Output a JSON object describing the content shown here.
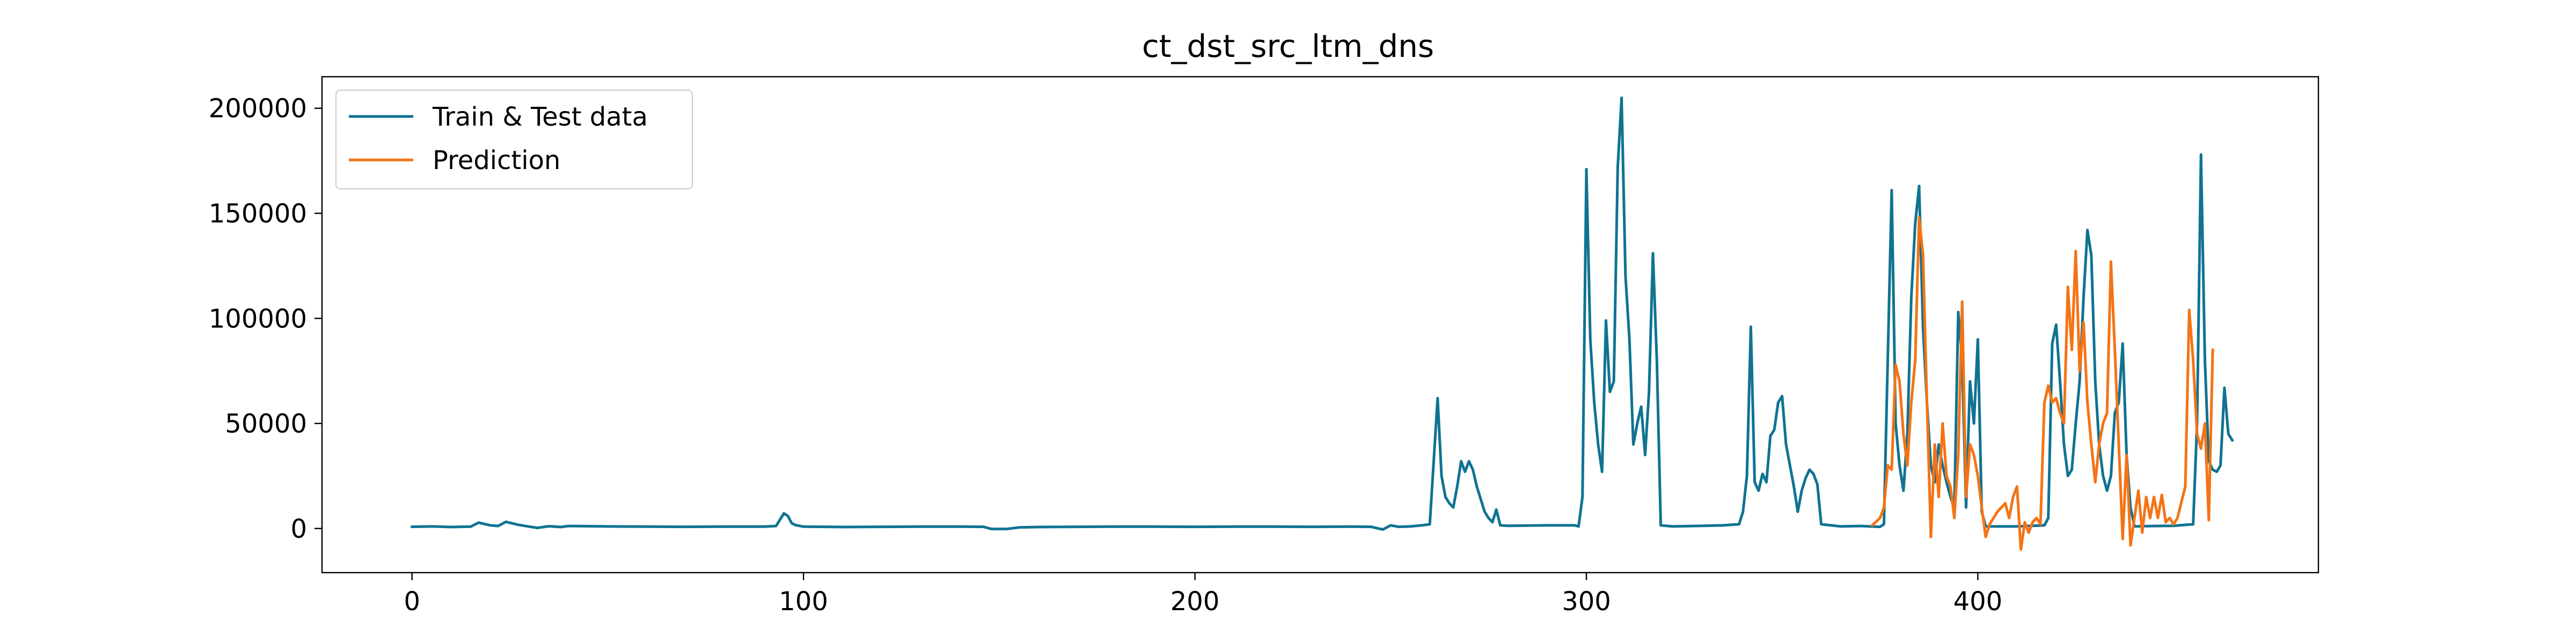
{
  "chart_data": {
    "type": "line",
    "title": "ct_dst_src_ltm_dns",
    "xlabel": "",
    "ylabel": "",
    "xlim": [
      -23,
      487
    ],
    "ylim": [
      -21000,
      215000
    ],
    "xticks": [
      0,
      100,
      200,
      300,
      400
    ],
    "yticks": [
      0,
      50000,
      100000,
      150000,
      200000
    ],
    "legend_position": "upper-left",
    "grid": false,
    "series": [
      {
        "name": "Train & Test data",
        "color": "#0f7391",
        "points": [
          [
            0,
            800
          ],
          [
            5,
            1000
          ],
          [
            10,
            700
          ],
          [
            15,
            900
          ],
          [
            17,
            2800
          ],
          [
            20,
            1500
          ],
          [
            22,
            1200
          ],
          [
            24,
            3200
          ],
          [
            27,
            1800
          ],
          [
            30,
            900
          ],
          [
            32,
            300
          ],
          [
            35,
            1100
          ],
          [
            38,
            700
          ],
          [
            40,
            1200
          ],
          [
            50,
            1000
          ],
          [
            60,
            900
          ],
          [
            70,
            800
          ],
          [
            80,
            900
          ],
          [
            90,
            900
          ],
          [
            93,
            1200
          ],
          [
            95,
            7200
          ],
          [
            96,
            6000
          ],
          [
            97,
            2500
          ],
          [
            98,
            1600
          ],
          [
            100,
            900
          ],
          [
            110,
            700
          ],
          [
            120,
            800
          ],
          [
            130,
            900
          ],
          [
            140,
            900
          ],
          [
            146,
            800
          ],
          [
            148,
            -200
          ],
          [
            152,
            -200
          ],
          [
            155,
            500
          ],
          [
            160,
            700
          ],
          [
            170,
            800
          ],
          [
            180,
            900
          ],
          [
            190,
            900
          ],
          [
            200,
            800
          ],
          [
            210,
            900
          ],
          [
            220,
            900
          ],
          [
            230,
            800
          ],
          [
            240,
            900
          ],
          [
            245,
            800
          ],
          [
            248,
            -500
          ],
          [
            250,
            1500
          ],
          [
            252,
            800
          ],
          [
            255,
            1000
          ],
          [
            258,
            1500
          ],
          [
            260,
            2000
          ],
          [
            262,
            62000
          ],
          [
            263,
            25000
          ],
          [
            264,
            15000
          ],
          [
            265,
            12000
          ],
          [
            266,
            10000
          ],
          [
            267,
            20000
          ],
          [
            268,
            32000
          ],
          [
            269,
            27000
          ],
          [
            270,
            32000
          ],
          [
            271,
            28000
          ],
          [
            272,
            20000
          ],
          [
            273,
            14000
          ],
          [
            274,
            8000
          ],
          [
            275,
            5000
          ],
          [
            276,
            3000
          ],
          [
            277,
            9000
          ],
          [
            278,
            1500
          ],
          [
            280,
            1300
          ],
          [
            290,
            1500
          ],
          [
            297,
            1500
          ],
          [
            298,
            1000
          ],
          [
            299,
            15000
          ],
          [
            300,
            171000
          ],
          [
            301,
            90000
          ],
          [
            302,
            60000
          ],
          [
            303,
            40000
          ],
          [
            304,
            27000
          ],
          [
            305,
            99000
          ],
          [
            306,
            65000
          ],
          [
            307,
            70000
          ],
          [
            308,
            172000
          ],
          [
            309,
            205000
          ],
          [
            310,
            120000
          ],
          [
            311,
            90000
          ],
          [
            312,
            40000
          ],
          [
            313,
            50000
          ],
          [
            314,
            58000
          ],
          [
            315,
            35000
          ],
          [
            316,
            65000
          ],
          [
            317,
            131000
          ],
          [
            318,
            80000
          ],
          [
            319,
            1500
          ],
          [
            322,
            1000
          ],
          [
            330,
            1300
          ],
          [
            335,
            1500
          ],
          [
            339,
            2000
          ],
          [
            340,
            8000
          ],
          [
            341,
            25000
          ],
          [
            342,
            96000
          ],
          [
            343,
            22000
          ],
          [
            344,
            18000
          ],
          [
            345,
            26000
          ],
          [
            346,
            22000
          ],
          [
            347,
            44000
          ],
          [
            348,
            47000
          ],
          [
            349,
            60000
          ],
          [
            350,
            63000
          ],
          [
            351,
            40000
          ],
          [
            352,
            30000
          ],
          [
            353,
            20000
          ],
          [
            354,
            8000
          ],
          [
            355,
            18000
          ],
          [
            356,
            24000
          ],
          [
            357,
            28000
          ],
          [
            358,
            26000
          ],
          [
            359,
            21000
          ],
          [
            360,
            2000
          ],
          [
            365,
            1000
          ],
          [
            370,
            1200
          ],
          [
            375,
            800
          ],
          [
            376,
            2000
          ],
          [
            378,
            161000
          ],
          [
            379,
            50000
          ],
          [
            380,
            30000
          ],
          [
            381,
            18000
          ],
          [
            382,
            45000
          ],
          [
            383,
            110000
          ],
          [
            384,
            145000
          ],
          [
            385,
            163000
          ],
          [
            386,
            95000
          ],
          [
            387,
            60000
          ],
          [
            388,
            30000
          ],
          [
            389,
            22000
          ],
          [
            390,
            40000
          ],
          [
            391,
            30000
          ],
          [
            392,
            22000
          ],
          [
            393,
            15000
          ],
          [
            394,
            10000
          ],
          [
            395,
            103000
          ],
          [
            396,
            80000
          ],
          [
            397,
            10000
          ],
          [
            398,
            70000
          ],
          [
            399,
            50000
          ],
          [
            400,
            90000
          ],
          [
            401,
            8000
          ],
          [
            402,
            1000
          ],
          [
            410,
            1000
          ],
          [
            417,
            1500
          ],
          [
            418,
            5000
          ],
          [
            419,
            88000
          ],
          [
            420,
            97000
          ],
          [
            421,
            70000
          ],
          [
            422,
            40000
          ],
          [
            423,
            25000
          ],
          [
            424,
            28000
          ],
          [
            425,
            50000
          ],
          [
            426,
            70000
          ],
          [
            427,
            110000
          ],
          [
            428,
            142000
          ],
          [
            429,
            130000
          ],
          [
            430,
            70000
          ],
          [
            431,
            40000
          ],
          [
            432,
            25000
          ],
          [
            433,
            18000
          ],
          [
            434,
            25000
          ],
          [
            435,
            55000
          ],
          [
            436,
            60000
          ],
          [
            437,
            88000
          ],
          [
            438,
            35000
          ],
          [
            439,
            10000
          ],
          [
            440,
            1000
          ],
          [
            445,
            1200
          ],
          [
            450,
            1300
          ],
          [
            455,
            2000
          ],
          [
            456,
            50000
          ],
          [
            457,
            178000
          ],
          [
            458,
            80000
          ],
          [
            459,
            32000
          ],
          [
            460,
            28000
          ],
          [
            461,
            27000
          ],
          [
            462,
            30000
          ],
          [
            463,
            67000
          ],
          [
            464,
            45000
          ],
          [
            465,
            42000
          ]
        ]
      },
      {
        "name": "Prediction",
        "color": "#f57315",
        "points": [
          [
            373,
            1500
          ],
          [
            375,
            5000
          ],
          [
            376,
            10000
          ],
          [
            377,
            30000
          ],
          [
            378,
            28000
          ],
          [
            379,
            78000
          ],
          [
            380,
            70000
          ],
          [
            381,
            45000
          ],
          [
            382,
            30000
          ],
          [
            383,
            60000
          ],
          [
            384,
            80000
          ],
          [
            385,
            148000
          ],
          [
            386,
            130000
          ],
          [
            387,
            60000
          ],
          [
            388,
            -4000
          ],
          [
            389,
            40000
          ],
          [
            390,
            15000
          ],
          [
            391,
            50000
          ],
          [
            392,
            25000
          ],
          [
            393,
            20000
          ],
          [
            394,
            5000
          ],
          [
            395,
            35000
          ],
          [
            396,
            108000
          ],
          [
            397,
            15000
          ],
          [
            398,
            40000
          ],
          [
            399,
            35000
          ],
          [
            400,
            25000
          ],
          [
            401,
            10000
          ],
          [
            402,
            -4000
          ],
          [
            403,
            2000
          ],
          [
            404,
            5000
          ],
          [
            405,
            8000
          ],
          [
            406,
            10000
          ],
          [
            407,
            12000
          ],
          [
            408,
            5000
          ],
          [
            409,
            15000
          ],
          [
            410,
            20000
          ],
          [
            411,
            -10000
          ],
          [
            412,
            3000
          ],
          [
            413,
            -2000
          ],
          [
            414,
            3000
          ],
          [
            415,
            5000
          ],
          [
            416,
            2000
          ],
          [
            417,
            60000
          ],
          [
            418,
            68000
          ],
          [
            419,
            60000
          ],
          [
            420,
            62000
          ],
          [
            421,
            55000
          ],
          [
            422,
            50000
          ],
          [
            423,
            115000
          ],
          [
            424,
            85000
          ],
          [
            425,
            132000
          ],
          [
            426,
            75000
          ],
          [
            427,
            98000
          ],
          [
            428,
            60000
          ],
          [
            429,
            40000
          ],
          [
            430,
            22000
          ],
          [
            431,
            40000
          ],
          [
            432,
            50000
          ],
          [
            433,
            55000
          ],
          [
            434,
            127000
          ],
          [
            435,
            85000
          ],
          [
            436,
            40000
          ],
          [
            437,
            -5000
          ],
          [
            438,
            35000
          ],
          [
            439,
            -8000
          ],
          [
            440,
            5000
          ],
          [
            441,
            18000
          ],
          [
            442,
            -2000
          ],
          [
            443,
            15000
          ],
          [
            444,
            5000
          ],
          [
            445,
            15000
          ],
          [
            446,
            5000
          ],
          [
            447,
            16000
          ],
          [
            448,
            3000
          ],
          [
            449,
            5000
          ],
          [
            450,
            2000
          ],
          [
            451,
            5000
          ],
          [
            453,
            20000
          ],
          [
            454,
            104000
          ],
          [
            455,
            80000
          ],
          [
            456,
            45000
          ],
          [
            457,
            38000
          ],
          [
            458,
            50000
          ],
          [
            459,
            4000
          ],
          [
            460,
            85000
          ]
        ]
      }
    ]
  }
}
